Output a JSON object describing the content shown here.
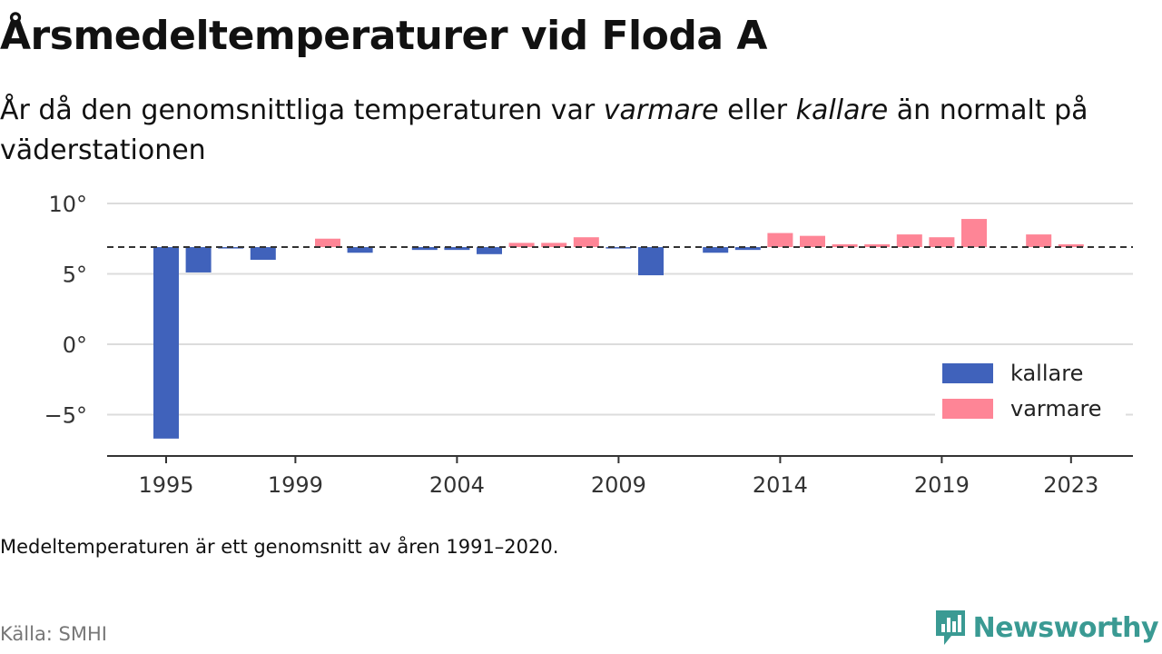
{
  "header": {
    "title": "Årsmedeltemperaturer vid Floda A",
    "subtitle_parts": [
      "År då den genomsnittliga temperaturen var ",
      "varmare",
      " eller ",
      "kallare",
      " än normalt på väderstationen"
    ]
  },
  "footer": {
    "note": "Medeltemperaturen är ett genomsnitt av åren 1991–2020.",
    "source": "Källa: SMHI",
    "brand": "Newsworthy"
  },
  "colors": {
    "kallare": "#4062bb",
    "varmare": "#fe8596",
    "brand": "#3a9a93"
  },
  "chart_data": {
    "type": "bar",
    "baseline": 6.9,
    "ylim": [
      -8,
      11
    ],
    "yticks": [
      10,
      5,
      0,
      -5
    ],
    "ytick_labels": [
      "10°",
      "5°",
      "0°",
      "−5°"
    ],
    "xticks": [
      1995,
      1999,
      2004,
      2009,
      2014,
      2019,
      2023
    ],
    "legend": {
      "position": "bottom-right",
      "entries": [
        "kallare",
        "varmare"
      ]
    },
    "grid": true,
    "x": [
      1995,
      1996,
      1997,
      1998,
      1999,
      2000,
      2001,
      2002,
      2003,
      2004,
      2005,
      2006,
      2007,
      2008,
      2009,
      2010,
      2011,
      2012,
      2013,
      2014,
      2015,
      2016,
      2017,
      2018,
      2019,
      2020,
      2021,
      2022,
      2023
    ],
    "values": [
      -6.7,
      5.1,
      6.8,
      6.0,
      null,
      7.5,
      6.5,
      null,
      6.7,
      6.7,
      6.4,
      7.2,
      7.2,
      7.6,
      6.8,
      4.9,
      null,
      6.5,
      6.7,
      7.9,
      7.7,
      7.1,
      7.1,
      7.8,
      7.6,
      8.9,
      null,
      7.8,
      7.1
    ]
  }
}
